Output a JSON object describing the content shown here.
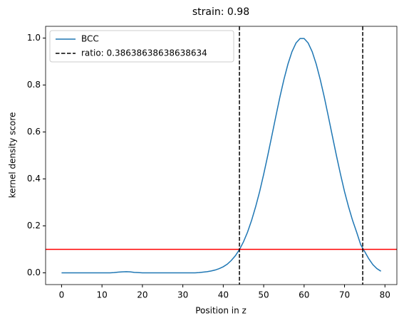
{
  "chart_data": {
    "type": "line",
    "title": "strain: 0.98",
    "xlabel": "Position in z",
    "ylabel": "kernel density score",
    "x": [
      0,
      1,
      2,
      3,
      4,
      5,
      6,
      7,
      8,
      9,
      10,
      11,
      12,
      13,
      14,
      15,
      16,
      17,
      18,
      19,
      20,
      21,
      22,
      23,
      24,
      25,
      26,
      27,
      28,
      29,
      30,
      31,
      32,
      33,
      34,
      35,
      36,
      37,
      38,
      39,
      40,
      41,
      42,
      43,
      44,
      45,
      46,
      47,
      48,
      49,
      50,
      51,
      52,
      53,
      54,
      55,
      56,
      57,
      58,
      59,
      60,
      61,
      62,
      63,
      64,
      65,
      66,
      67,
      68,
      69,
      70,
      71,
      72,
      73,
      74,
      75,
      76,
      77,
      78,
      79
    ],
    "series": [
      {
        "name": "BCC",
        "color": "#1f77b4",
        "values": [
          0,
          0,
          0,
          0,
          0,
          0,
          0,
          0,
          0,
          0,
          0,
          0,
          0,
          0.001,
          0.003,
          0.004,
          0.005,
          0.004,
          0.002,
          0.001,
          0,
          0,
          0,
          0,
          0,
          0,
          0,
          0,
          0,
          0,
          0,
          0,
          0,
          0,
          0.001,
          0.003,
          0.005,
          0.008,
          0.012,
          0.018,
          0.026,
          0.037,
          0.053,
          0.073,
          0.099,
          0.132,
          0.173,
          0.223,
          0.281,
          0.346,
          0.42,
          0.499,
          0.582,
          0.666,
          0.748,
          0.823,
          0.889,
          0.942,
          0.979,
          0.998,
          0.998,
          0.979,
          0.942,
          0.889,
          0.823,
          0.748,
          0.666,
          0.582,
          0.499,
          0.42,
          0.346,
          0.281,
          0.223,
          0.173,
          0.12,
          0.09,
          0.06,
          0.035,
          0.018,
          0.007
        ]
      }
    ],
    "vlines": [
      44,
      74.5
    ],
    "vline_label": "ratio: 0.38638638638638634",
    "vline_color": "#000000",
    "hline": 0.1,
    "hline_color": "#ff0000",
    "xlim": [
      -3.95,
      82.95
    ],
    "ylim": [
      -0.05,
      1.05
    ],
    "xticks": [
      0,
      10,
      20,
      30,
      40,
      50,
      60,
      70,
      80
    ],
    "yticks": [
      {
        "value": 0,
        "label": "0.0"
      },
      {
        "value": 0.2,
        "label": "0.2"
      },
      {
        "value": 0.4,
        "label": "0.4"
      },
      {
        "value": 0.6,
        "label": "0.6"
      },
      {
        "value": 0.8,
        "label": "0.8"
      },
      {
        "value": 1,
        "label": "1.0"
      }
    ],
    "legend": "upper left"
  }
}
